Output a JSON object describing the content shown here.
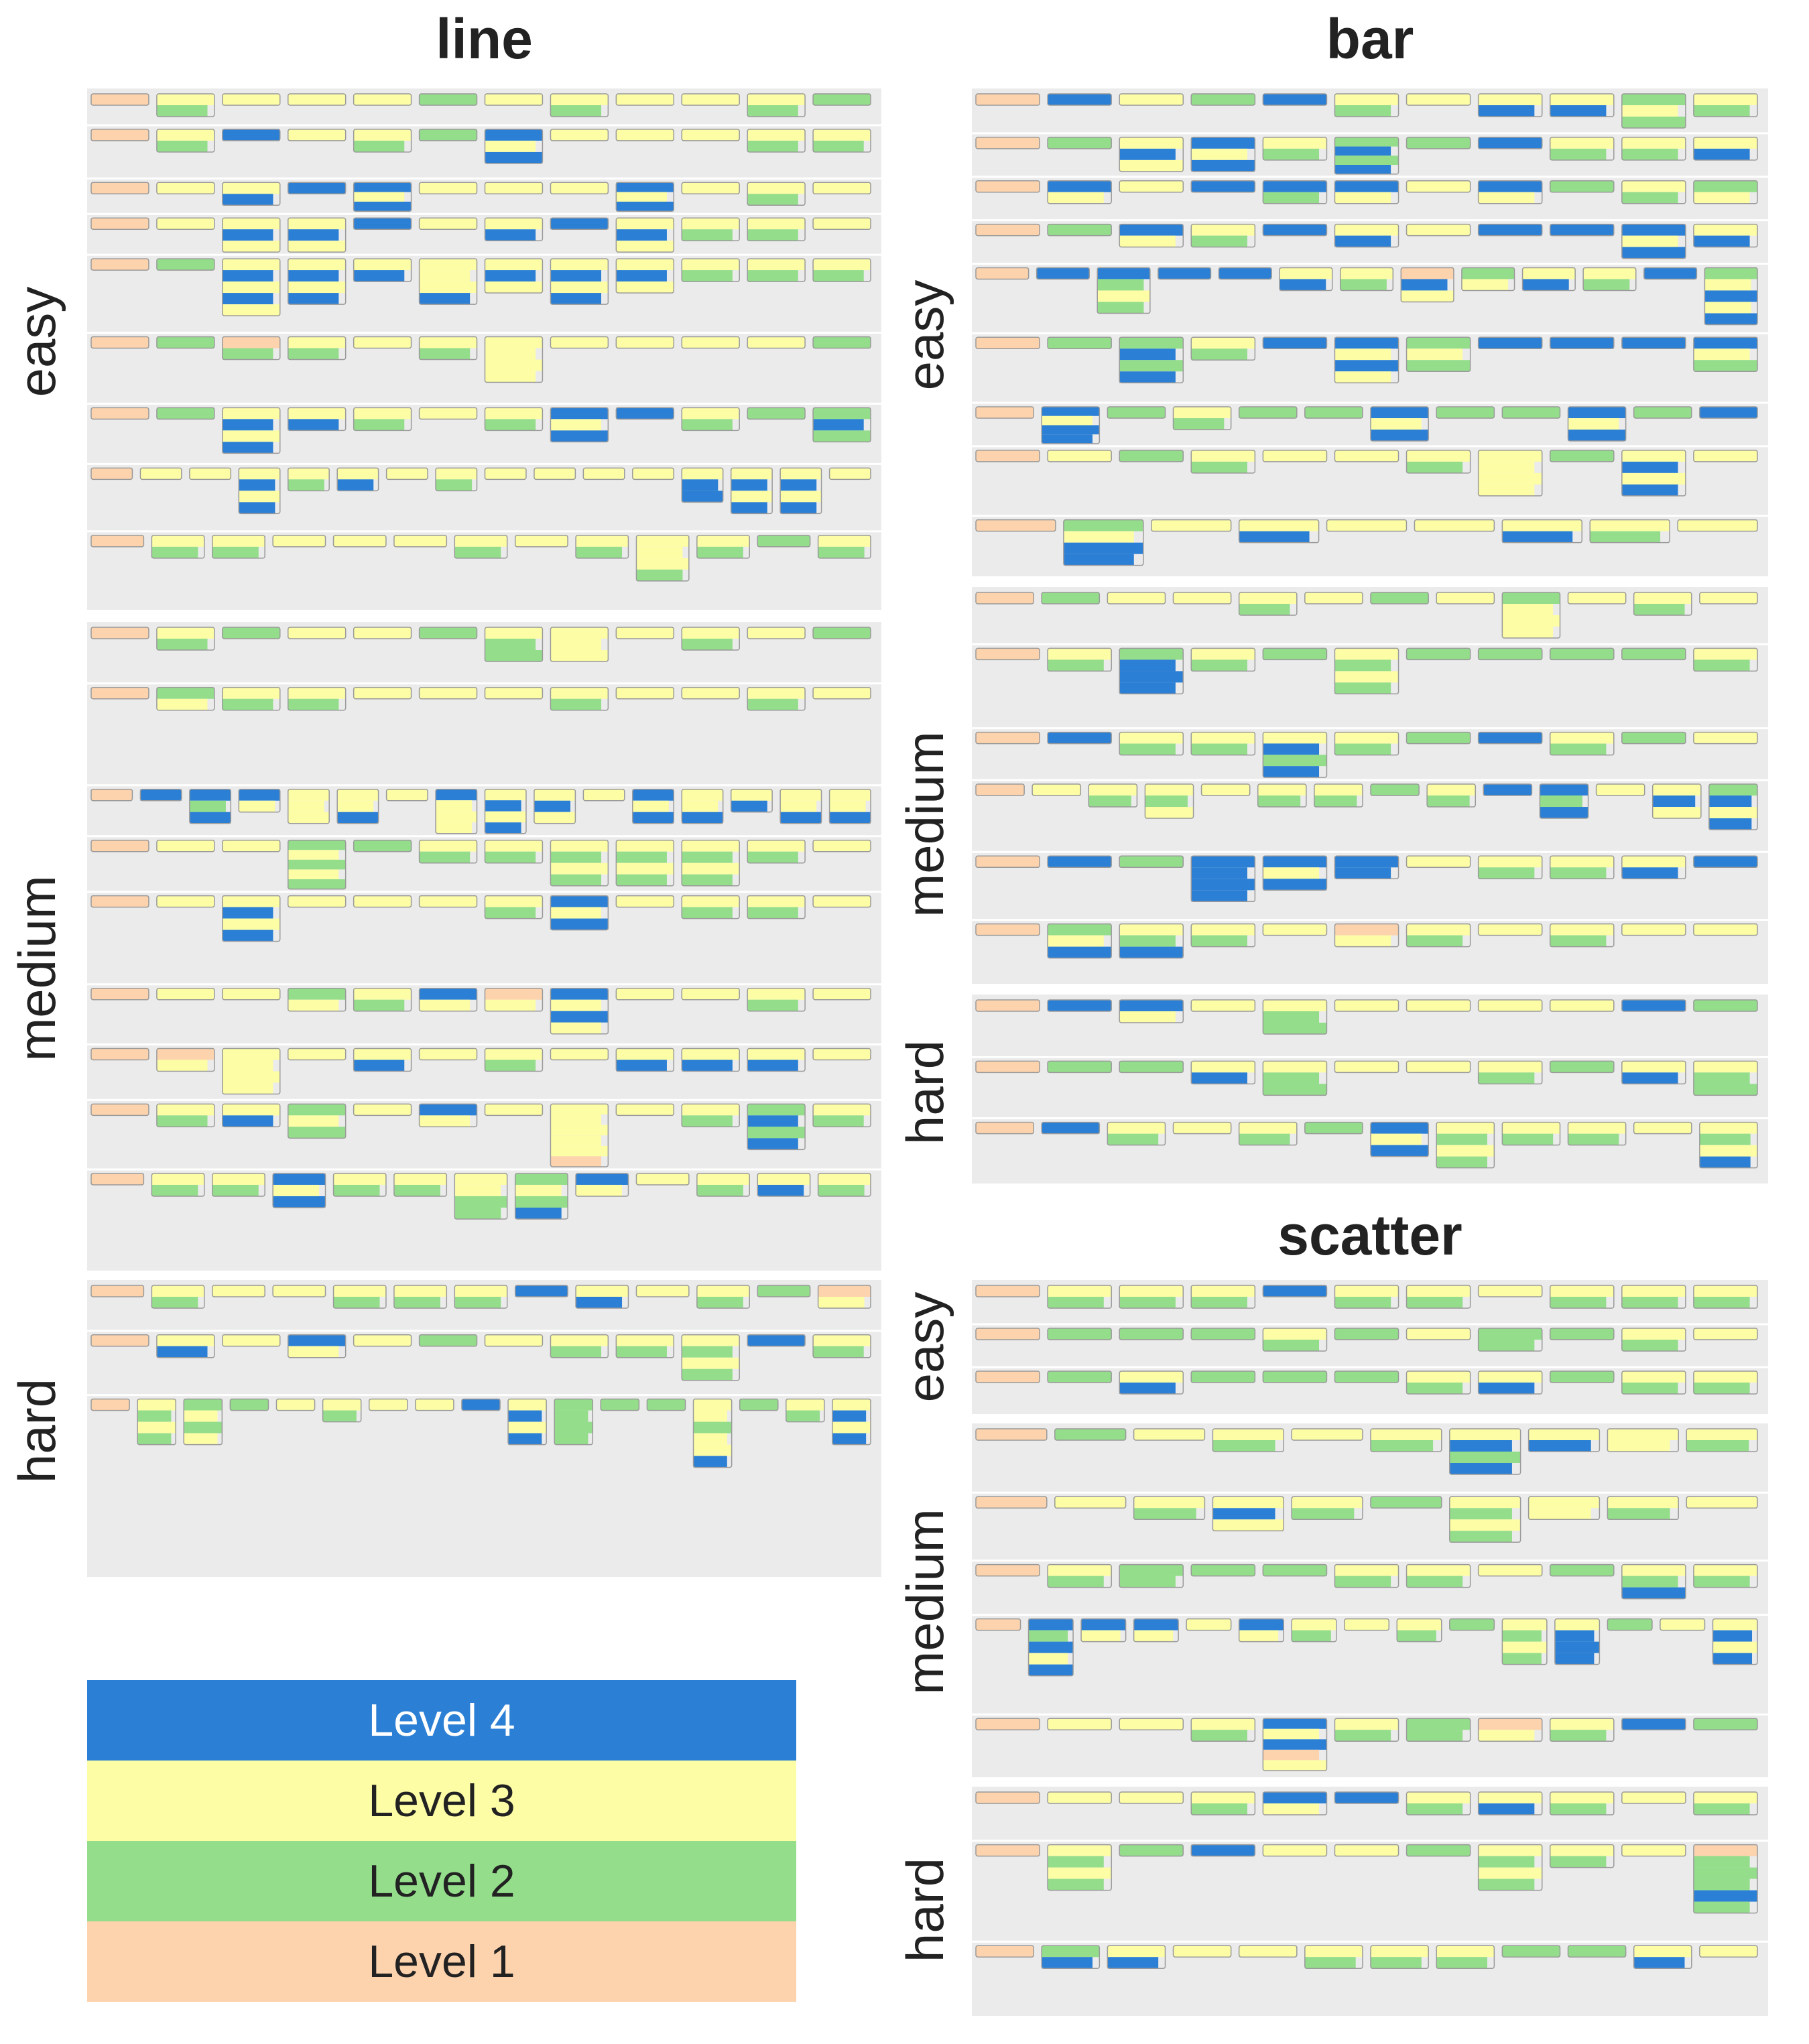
{
  "chart_data": [
    {
      "type": "other",
      "title": "line",
      "panels": [
        {
          "label": "easy",
          "rows": [
            {
              "cells": [
                "1",
                "32",
                "3",
                "3",
                "3",
                "2",
                "3",
                "32",
                "3",
                "3",
                "32",
                "2"
              ]
            },
            {
              "cells": [
                "1",
                "32",
                "4",
                "3",
                "32",
                "2",
                "434",
                "3",
                "3",
                "3",
                "32",
                "32"
              ]
            },
            {
              "cells": [
                "1",
                "3",
                "34",
                "4",
                "434",
                "3",
                "3",
                "3",
                "434",
                "3",
                "32",
                "3"
              ]
            },
            {
              "cells": [
                "1",
                "3",
                "343",
                "343",
                "4",
                "3",
                "34",
                "4",
                "343",
                "32",
                "32",
                "3"
              ]
            },
            {
              "cells": [
                "1",
                "2",
                "34343",
                "3434",
                "34",
                "3334",
                "343",
                "3434",
                "343",
                "32",
                "32",
                "32"
              ]
            },
            {
              "cells": [
                "1",
                "2",
                "12",
                "32",
                "3",
                "32",
                "3333",
                "3",
                "3",
                "3",
                "3",
                "2"
              ]
            },
            {
              "cells": [
                "1",
                "2",
                "3434",
                "34",
                "32",
                "3",
                "32",
                "434",
                "4",
                "32",
                "2",
                "242"
              ]
            },
            {
              "cells": [
                "1",
                "3",
                "3",
                "3434",
                "32",
                "34",
                "3",
                "32",
                "3",
                "3",
                "3",
                "3",
                "344",
                "3434",
                "3434",
                "3"
              ]
            },
            {
              "cells": [
                "1",
                "32",
                "32",
                "3",
                "3",
                "3",
                "32",
                "3",
                "32",
                "3332",
                "32",
                "2",
                "32"
              ]
            }
          ]
        },
        {
          "label": "medium",
          "rows": [
            {
              "cells": [
                "1",
                "32",
                "2",
                "3",
                "3",
                "2",
                "322",
                "333",
                "3",
                "32",
                "3",
                "2"
              ]
            },
            {
              "cells": [
                "1",
                "23",
                "32",
                "32",
                "3",
                "3",
                "3",
                "32",
                "3",
                "3",
                "32",
                "3"
              ]
            },
            {
              "cells": [
                "1",
                "4",
                "424",
                "43",
                "333",
                "334",
                "3",
                "4333",
                "3434",
                "343",
                "3",
                "434",
                "334",
                "34",
                "334",
                "334"
              ]
            },
            {
              "cells": [
                "1",
                "3",
                "3",
                "23232",
                "2",
                "32",
                "32",
                "3232",
                "3232",
                "3232",
                "32",
                "3"
              ]
            },
            {
              "cells": [
                "1",
                "3",
                "3434",
                "3",
                "3",
                "3",
                "32",
                "434",
                "3",
                "32",
                "32",
                "3"
              ]
            },
            {
              "cells": [
                "1",
                "3",
                "3",
                "23",
                "32",
                "43",
                "13",
                "4343",
                "3",
                "3",
                "32",
                "3"
              ]
            },
            {
              "cells": [
                "1",
                "13",
                "3333",
                "3",
                "34",
                "3",
                "32",
                "3",
                "34",
                "34",
                "34",
                "3"
              ]
            },
            {
              "cells": [
                "1",
                "32",
                "34",
                "232",
                "3",
                "43",
                "3",
                "333331",
                "3",
                "32",
                "2424",
                "32"
              ]
            },
            {
              "cells": [
                "1",
                "32",
                "32",
                "434",
                "32",
                "32",
                "3322",
                "2324",
                "43",
                "3",
                "32",
                "34",
                "32"
              ]
            }
          ]
        },
        {
          "label": "hard",
          "rows": [
            {
              "cells": [
                "1",
                "32",
                "3",
                "3",
                "32",
                "32",
                "32",
                "4",
                "34",
                "3",
                "32",
                "2",
                "13"
              ]
            },
            {
              "cells": [
                "1",
                "34",
                "3",
                "43",
                "3",
                "2",
                "3",
                "32",
                "32",
                "3232",
                "4",
                "32"
              ]
            },
            {
              "cells": [
                "1",
                "3232",
                "2323",
                "2",
                "3",
                "32",
                "3",
                "3",
                "4",
                "3434",
                "2222",
                "2",
                "2",
                "332334",
                "2",
                "32",
                "3434"
              ]
            }
          ]
        }
      ]
    },
    {
      "type": "other",
      "title": "bar",
      "panels": [
        {
          "label": "easy",
          "rows": [
            {
              "cells": [
                "1",
                "4",
                "3",
                "2",
                "4",
                "32",
                "3",
                "34",
                "34",
                "232",
                "32"
              ]
            },
            {
              "cells": [
                "1",
                "2",
                "343",
                "434",
                "32",
                "2424",
                "2",
                "4",
                "32",
                "32",
                "34"
              ]
            },
            {
              "cells": [
                "1",
                "43",
                "3",
                "4",
                "42",
                "43",
                "3",
                "43",
                "2",
                "32",
                "23"
              ]
            },
            {
              "cells": [
                "1",
                "2",
                "43",
                "32",
                "4",
                "34",
                "3",
                "4",
                "4",
                "434",
                "34"
              ]
            },
            {
              "cells": [
                "1",
                "4",
                "4232",
                "4",
                "4",
                "34",
                "32",
                "143",
                "23",
                "34",
                "32",
                "4",
                "23434"
              ]
            },
            {
              "cells": [
                "1",
                "2",
                "2424",
                "32",
                "4",
                "4343",
                "232",
                "4",
                "4",
                "4",
                "432"
              ]
            },
            {
              "cells": [
                "1",
                "4344",
                "2",
                "32",
                "2",
                "2",
                "434",
                "2",
                "2",
                "434",
                "2",
                "4"
              ]
            },
            {
              "cells": [
                "1",
                "3",
                "2",
                "32",
                "3",
                "3",
                "32",
                "3333",
                "2",
                "3434",
                "3"
              ]
            },
            {
              "cells": [
                "1",
                "2344",
                "3",
                "34",
                "3",
                "3",
                "34",
                "32",
                "3"
              ]
            }
          ]
        },
        {
          "label": "medium",
          "rows": [
            {
              "cells": [
                "1",
                "2",
                "3",
                "3",
                "32",
                "3",
                "2",
                "3",
                "2333",
                "3",
                "32",
                "3"
              ]
            },
            {
              "cells": [
                "1",
                "32",
                "2444",
                "32",
                "2",
                "3232",
                "2",
                "2",
                "2",
                "2",
                "32"
              ]
            },
            {
              "cells": [
                "1",
                "4",
                "32",
                "32",
                "3424",
                "32",
                "2",
                "4",
                "32",
                "2",
                "3"
              ]
            },
            {
              "cells": [
                "1",
                "3",
                "32",
                "323",
                "3",
                "32",
                "32",
                "2",
                "32",
                "4",
                "424",
                "3",
                "343",
                "2434"
              ]
            },
            {
              "cells": [
                "1",
                "4",
                "2",
                "4444",
                "434",
                "44",
                "3",
                "32",
                "32",
                "34",
                "4"
              ]
            },
            {
              "cells": [
                "1",
                "234",
                "324",
                "32",
                "3",
                "13",
                "32",
                "3",
                "32",
                "3",
                "3"
              ]
            }
          ]
        },
        {
          "label": "hard",
          "rows": [
            {
              "cells": [
                "1",
                "4",
                "43",
                "3",
                "322",
                "3",
                "3",
                "3",
                "3",
                "4",
                "2"
              ]
            },
            {
              "cells": [
                "1",
                "2",
                "2",
                "34",
                "322",
                "3",
                "3",
                "32",
                "2",
                "34",
                "322"
              ]
            },
            {
              "cells": [
                "1",
                "4",
                "32",
                "3",
                "32",
                "2",
                "434",
                "3232",
                "32",
                "32",
                "3",
                "3234"
              ]
            }
          ]
        }
      ]
    },
    {
      "type": "other",
      "title": "scatter",
      "panels": [
        {
          "label": "easy",
          "rows": [
            {
              "cells": [
                "1",
                "32",
                "32",
                "32",
                "4",
                "32",
                "32",
                "3",
                "32",
                "32",
                "32"
              ]
            },
            {
              "cells": [
                "1",
                "2",
                "2",
                "2",
                "32",
                "2",
                "3",
                "22",
                "2",
                "32",
                "3"
              ]
            },
            {
              "cells": [
                "1",
                "2",
                "34",
                "2",
                "2",
                "2",
                "32",
                "34",
                "2",
                "32",
                "32"
              ]
            }
          ]
        },
        {
          "label": "medium",
          "rows": [
            {
              "cells": [
                "1",
                "2",
                "3",
                "32",
                "3",
                "32",
                "3424",
                "34",
                "33",
                "32"
              ]
            },
            {
              "cells": [
                "1",
                "3",
                "32",
                "343",
                "32",
                "2",
                "3232",
                "33",
                "32",
                "3"
              ]
            },
            {
              "cells": [
                "1",
                "32",
                "22",
                "2",
                "2",
                "32",
                "32",
                "3",
                "2",
                "324",
                "32"
              ]
            },
            {
              "cells": [
                "1",
                "42434",
                "43",
                "43",
                "3",
                "43",
                "32",
                "3",
                "32",
                "2",
                "3232",
                "3444",
                "2",
                "3",
                "3434"
              ]
            },
            {
              "cells": [
                "1",
                "3",
                "3",
                "32",
                "43413",
                "32",
                "22",
                "13",
                "32",
                "4",
                "2"
              ]
            }
          ]
        },
        {
          "label": "hard",
          "rows": [
            {
              "cells": [
                "1",
                "3",
                "3",
                "32",
                "43",
                "4",
                "32",
                "34",
                "32",
                "3",
                "32"
              ]
            },
            {
              "cells": [
                "1",
                "3232",
                "2",
                "4",
                "3",
                "3",
                "2",
                "3232",
                "32",
                "3",
                "122242"
              ]
            },
            {
              "cells": [
                "1",
                "24",
                "34",
                "3",
                "3",
                "32",
                "32",
                "32",
                "2",
                "2",
                "34",
                "3"
              ]
            }
          ]
        }
      ]
    }
  ],
  "legend": [
    {
      "label": "Level 4",
      "color": "#2b7fd4",
      "text_color": "#ffffff"
    },
    {
      "label": "Level 3",
      "color": "#fdfda6",
      "text_color": "#222222"
    },
    {
      "label": "Level 2",
      "color": "#93dd8b",
      "text_color": "#222222"
    },
    {
      "label": "Level 1",
      "color": "#fdd3ad",
      "text_color": "#222222"
    }
  ],
  "colors": {
    "1": "#fdd3ad",
    "2": "#93dd8b",
    "3": "#fdfda6",
    "4": "#2b7fd4",
    "panel_bg": "#ebebeb",
    "outline": "#9a9a9a"
  }
}
